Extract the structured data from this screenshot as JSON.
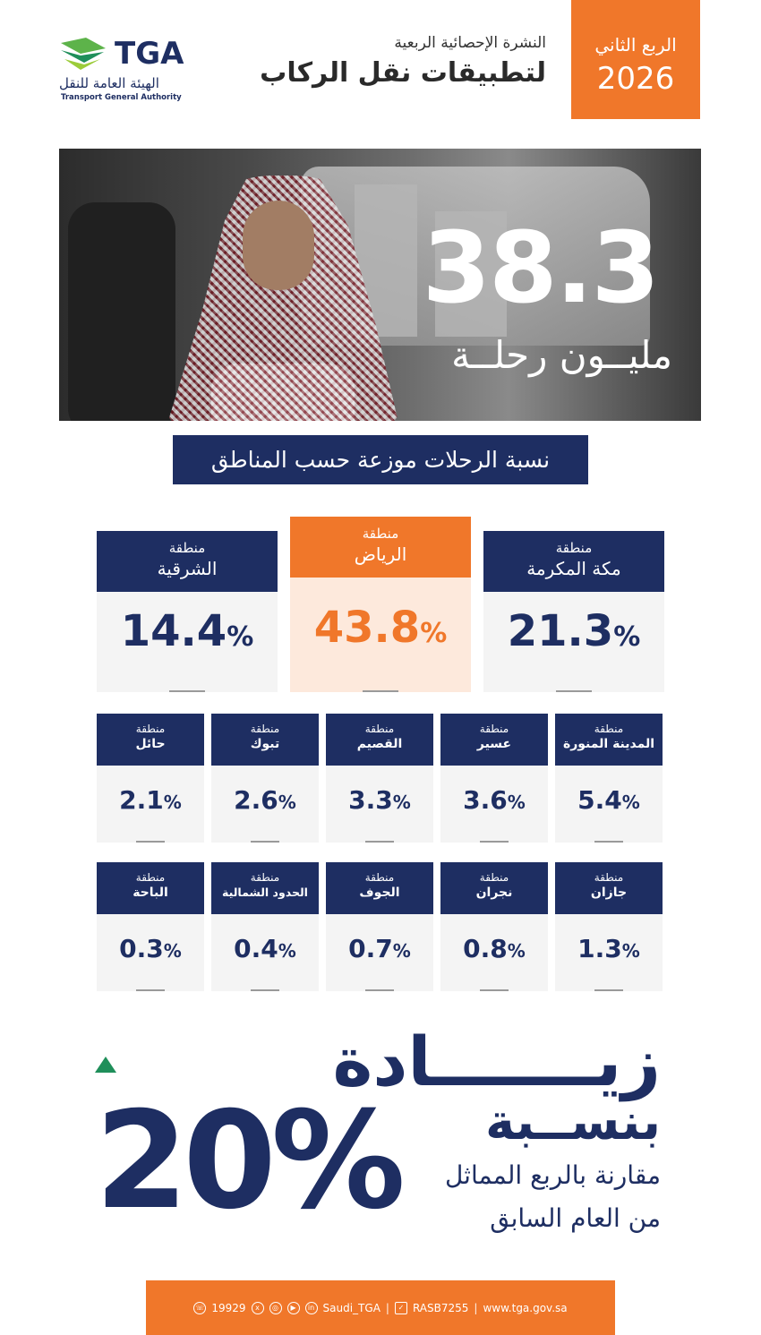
{
  "header": {
    "quarter": "الربع الثاني",
    "year": "2026",
    "bulletin_subtitle": "النشرة الإحصائية الربعية",
    "bulletin_title": "لتطبيقات نقل الركاب",
    "logo": {
      "abbr": "TGA",
      "arabic_name": "الهيئة العامة للنقل",
      "english_name": "Transport General Authority"
    }
  },
  "hero": {
    "total_trips": "38.3",
    "unit": "مليــون رحلــة"
  },
  "section_title": "نسبة الرحلات موزعة حسب المناطق",
  "region_prefix": "منطقة",
  "top_regions": [
    {
      "name": "الشرقية",
      "value": "14.4",
      "unit": "%"
    },
    {
      "name": "الرياض",
      "value": "43.8",
      "unit": "%",
      "highlight": true
    },
    {
      "name": "مكة المكرمة",
      "value": "21.3",
      "unit": "%"
    }
  ],
  "regions_row1": [
    {
      "name": "حائل",
      "value": "2.1",
      "unit": "%"
    },
    {
      "name": "تبوك",
      "value": "2.6",
      "unit": "%"
    },
    {
      "name": "القصيم",
      "value": "3.3",
      "unit": "%"
    },
    {
      "name": "عسير",
      "value": "3.6",
      "unit": "%"
    },
    {
      "name": "المدينة المنورة",
      "value": "5.4",
      "unit": "%"
    }
  ],
  "regions_row2": [
    {
      "name": "الباحة",
      "value": "0.3",
      "unit": "%"
    },
    {
      "name": "الحدود الشمالية",
      "value": "0.4",
      "unit": "%"
    },
    {
      "name": "الجوف",
      "value": "0.7",
      "unit": "%"
    },
    {
      "name": "نجران",
      "value": "0.8",
      "unit": "%"
    },
    {
      "name": "جازان",
      "value": "1.3",
      "unit": "%"
    }
  ],
  "increase": {
    "word": "زيـــــــادة",
    "rate_word": "بنســبة",
    "percent": "20%",
    "comparison_line1": "مقارنة بالربع المماثل",
    "comparison_line2": "من العام السابق",
    "trend_color": "#1f8f5a"
  },
  "footer": {
    "phone": "19929",
    "handle": "Saudi_TGA",
    "rasb": "RASB7255",
    "website": "www.tga.gov.sa",
    "separator": "|"
  },
  "colors": {
    "navy": "#1e2e62",
    "orange": "#f0772a",
    "highlight_bg": "#fde9dc",
    "card_bg": "#f4f4f4"
  }
}
